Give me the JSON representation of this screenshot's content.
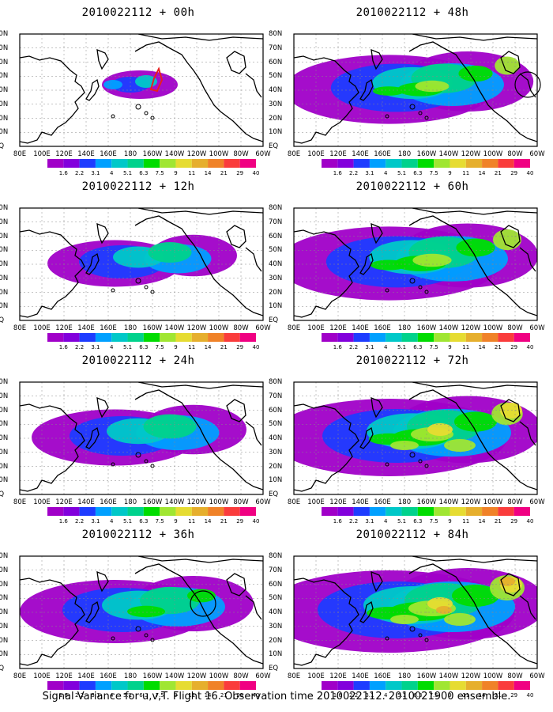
{
  "panels": [
    {
      "title": "2010022112 + 00h",
      "coverage": 0.0
    },
    {
      "title": "2010022112 + 12h",
      "coverage": 0.25
    },
    {
      "title": "2010022112 + 24h",
      "coverage": 0.45
    },
    {
      "title": "2010022112 + 36h",
      "coverage": 0.6
    },
    {
      "title": "2010022112 + 48h",
      "coverage": 0.72
    },
    {
      "title": "2010022112 + 60h",
      "coverage": 0.82
    },
    {
      "title": "2010022112 + 72h",
      "coverage": 0.9
    },
    {
      "title": "2010022112 + 84h",
      "coverage": 1.0
    }
  ],
  "lon_labels": [
    "80E",
    "100E",
    "120E",
    "140E",
    "160E",
    "180",
    "160W",
    "140W",
    "120W",
    "100W",
    "80W",
    "60W"
  ],
  "lat_labels": [
    "80N",
    "70N",
    "60N",
    "50N",
    "40N",
    "30N",
    "20N",
    "10N",
    "EQ"
  ],
  "colorbar": {
    "labels": [
      "1.6",
      "2.2",
      "3.1",
      "4",
      "5.1",
      "6.3",
      "7.5",
      "9",
      "11",
      "14",
      "21",
      "29",
      "40"
    ],
    "colors": [
      "#a000c8",
      "#8200dc",
      "#1e3cff",
      "#00a0ff",
      "#00c8c8",
      "#00d28c",
      "#00dc00",
      "#a0e632",
      "#e6dc32",
      "#e6af2d",
      "#f08228",
      "#fa3c3c",
      "#f00082"
    ]
  },
  "footer": "Signal Variance for u,v,T. Flight 16. Observation time 2010022112. 2010021900 ensemble."
}
